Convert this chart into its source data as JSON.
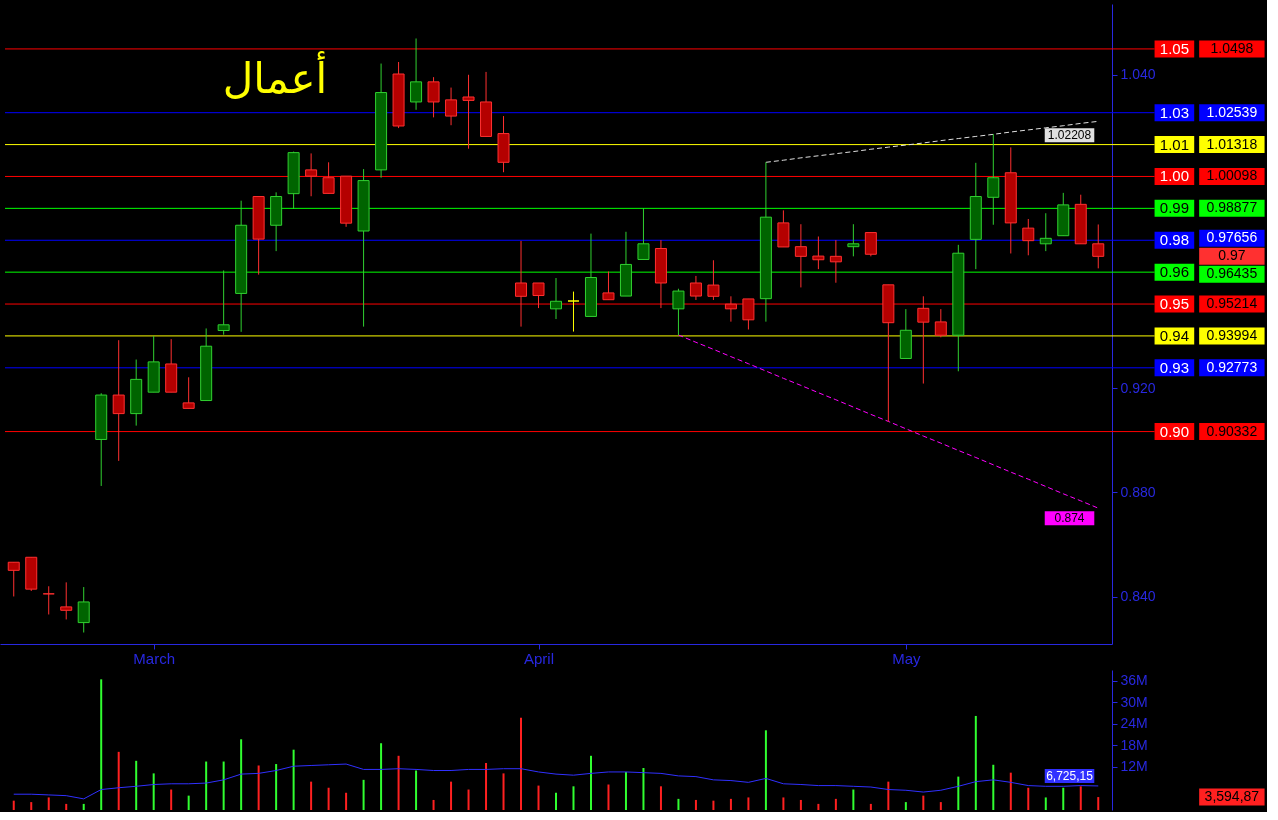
{
  "chart_data": [
    {
      "type": "candlestick",
      "title": "أعمال",
      "categories": [
        null,
        null,
        null,
        null,
        null,
        null,
        null,
        null,
        "March",
        null,
        null,
        null,
        null,
        null,
        null,
        null,
        null,
        null,
        null,
        null,
        null,
        null,
        null,
        null,
        null,
        null,
        null,
        null,
        null,
        null,
        "April",
        null,
        null,
        null,
        null,
        null,
        null,
        null,
        null,
        null,
        null,
        null,
        null,
        null,
        null,
        null,
        null,
        null,
        null,
        null,
        null,
        "May",
        null,
        null,
        null,
        null,
        null,
        null,
        null,
        null,
        null,
        null,
        null
      ],
      "ohlc": [
        [
          0.8533,
          0.8533,
          0.8402,
          0.8502
        ],
        [
          0.8552,
          0.8552,
          0.8423,
          0.843
        ],
        [
          0.8412,
          0.8441,
          0.8333,
          0.8412
        ],
        [
          0.8362,
          0.8456,
          0.8314,
          0.8349
        ],
        [
          0.8302,
          0.8438,
          0.8264,
          0.8381
        ],
        [
          0.9003,
          0.918,
          0.8825,
          0.9173
        ],
        [
          0.9173,
          0.9383,
          0.8921,
          0.9102
        ],
        [
          0.9102,
          0.9309,
          0.9056,
          0.9233
        ],
        [
          0.9184,
          0.9399,
          0.9184,
          0.93
        ],
        [
          0.9292,
          0.9387,
          0.9184,
          0.9184
        ],
        [
          0.9143,
          0.9241,
          0.9122,
          0.9122
        ],
        [
          0.9152,
          0.9428,
          0.9152,
          0.936
        ],
        [
          0.942,
          0.965,
          0.9404,
          0.9442
        ],
        [
          0.9562,
          0.9917,
          0.9415,
          0.9823
        ],
        [
          0.9933,
          0.9933,
          0.9634,
          0.977
        ],
        [
          0.9823,
          0.9949,
          0.9724,
          0.9933
        ],
        [
          0.9944,
          1.0105,
          0.9886,
          1.0101
        ],
        [
          1.0035,
          1.0098,
          0.9934,
          1.0011
        ],
        [
          1.0005,
          1.0064,
          0.9945,
          0.9945
        ],
        [
          1.0011,
          1.0011,
          0.9817,
          0.9831
        ],
        [
          0.9801,
          1.0038,
          0.9435,
          0.9994
        ],
        [
          1.0035,
          1.0442,
          1.0005,
          1.0331
        ],
        [
          1.0402,
          1.0448,
          1.0195,
          1.0203
        ],
        [
          1.0295,
          1.0538,
          1.0265,
          1.0372
        ],
        [
          1.0372,
          1.039,
          1.0236,
          1.0295
        ],
        [
          1.0303,
          1.035,
          1.0206,
          1.0241
        ],
        [
          1.0314,
          1.0399,
          1.0116,
          1.0301
        ],
        [
          1.0295,
          1.041,
          1.0163,
          1.0163
        ],
        [
          1.0174,
          1.0241,
          1.0026,
          1.0064
        ],
        [
          0.9602,
          0.9763,
          0.9435,
          0.9551
        ],
        [
          0.9602,
          0.9602,
          0.9506,
          0.9554
        ],
        [
          0.9503,
          0.9621,
          0.9464,
          0.9532
        ],
        [
          0.9533,
          0.9569,
          0.9416,
          0.9533
        ],
        [
          0.9474,
          0.9791,
          0.9474,
          0.9623
        ],
        [
          0.9564,
          0.9646,
          0.9538,
          0.9538
        ],
        [
          0.9552,
          0.9798,
          0.9552,
          0.9673
        ],
        [
          0.9692,
          0.9888,
          0.9692,
          0.9752
        ],
        [
          0.9734,
          0.9766,
          0.9506,
          0.9602
        ],
        [
          0.9503,
          0.958,
          0.9403,
          0.9571
        ],
        [
          0.9602,
          0.9629,
          0.9537,
          0.9552
        ],
        [
          0.9594,
          0.9689,
          0.9537,
          0.9551
        ],
        [
          0.9521,
          0.9551,
          0.9454,
          0.9503
        ],
        [
          0.9541,
          0.9541,
          0.9424,
          0.9461
        ],
        [
          0.9542,
          1.0064,
          0.9454,
          0.9854
        ],
        [
          0.9832,
          0.988,
          0.974,
          0.974
        ],
        [
          0.9741,
          0.9827,
          0.9585,
          0.9704
        ],
        [
          0.9705,
          0.978,
          0.9655,
          0.9691
        ],
        [
          0.9704,
          0.9766,
          0.9603,
          0.9683
        ],
        [
          0.9741,
          0.9827,
          0.9704,
          0.9752
        ],
        [
          0.9795,
          0.9795,
          0.9704,
          0.9712
        ],
        [
          0.9595,
          0.9595,
          0.9071,
          0.945
        ],
        [
          0.9313,
          0.9502,
          0.9313,
          0.9421
        ],
        [
          0.9505,
          0.9551,
          0.9217,
          0.9452
        ],
        [
          0.9453,
          0.9502,
          0.9394,
          0.9402
        ],
        [
          0.9402,
          0.9748,
          0.9264,
          0.9716
        ],
        [
          0.9769,
          1.0062,
          0.9655,
          0.9933
        ],
        [
          0.993,
          1.0172,
          0.9825,
          1.0005
        ],
        [
          1.0024,
          1.0121,
          0.9715,
          0.9832
        ],
        [
          0.9812,
          0.9847,
          0.9708,
          0.9764
        ],
        [
          0.9752,
          0.9869,
          0.9724,
          0.9773
        ],
        [
          0.9783,
          0.9947,
          0.9783,
          0.9901
        ],
        [
          0.9903,
          0.994,
          0.9752,
          0.9752
        ],
        [
          0.9752,
          0.9826,
          0.9658,
          0.9704
        ]
      ],
      "colors": [
        "#b40000",
        "#b40000",
        "#ff3030",
        "#b40000",
        "#006400",
        "#006400",
        "#b40000",
        "#006400",
        "#006400",
        "#b40000",
        "#b40000",
        "#006400",
        "#006400",
        "#006400",
        "#b40000",
        "#006400",
        "#006400",
        "#b40000",
        "#b40000",
        "#b40000",
        "#006400",
        "#006400",
        "#b40000",
        "#006400",
        "#b40000",
        "#b40000",
        "#b40000",
        "#b40000",
        "#b40000",
        "#b40000",
        "#b40000",
        "#006400",
        "#ffff00",
        "#006400",
        "#b40000",
        "#006400",
        "#006400",
        "#b40000",
        "#006400",
        "#b40000",
        "#b40000",
        "#b40000",
        "#b40000",
        "#006400",
        "#b40000",
        "#b40000",
        "#b40000",
        "#b40000",
        "#006400",
        "#b40000",
        "#b40000",
        "#006400",
        "#b40000",
        "#b40000",
        "#006400",
        "#006400",
        "#006400",
        "#b40000",
        "#b40000",
        "#006400",
        "#006400",
        "#b40000",
        "#b40000"
      ],
      "ylim": [
        0.822,
        1.067
      ],
      "yticks": [
        {
          "value": 1.04,
          "label": "1.040"
        },
        {
          "value": 0.92,
          "label": "0.920"
        },
        {
          "value": 0.88,
          "label": "0.880"
        },
        {
          "value": 0.84,
          "label": "0.840"
        }
      ],
      "ref_lines": [
        {
          "axis": "y",
          "value": 1.0498,
          "label": "1.05",
          "color": "#ff0000"
        },
        {
          "axis": "y",
          "value": 1.02539,
          "label": "1.03",
          "color": "#0000ff"
        },
        {
          "axis": "y",
          "value": 1.01318,
          "label": "1.01",
          "color": "#ffff00"
        },
        {
          "axis": "y",
          "value": 1.00098,
          "label": "1.00",
          "color": "#ff0000"
        },
        {
          "axis": "y",
          "value": 0.98877,
          "label": "0.99",
          "color": "#00ff00"
        },
        {
          "axis": "y",
          "value": 0.97656,
          "label": "0.98",
          "color": "#0000ff"
        },
        {
          "axis": "y",
          "value": 0.96435,
          "label": "0.96",
          "color": "#00ff00"
        },
        {
          "axis": "y",
          "value": 0.95214,
          "label": "0.95",
          "color": "#ff0000"
        },
        {
          "axis": "y",
          "value": 0.93994,
          "label": "0.94",
          "color": "#ffff00"
        },
        {
          "axis": "y",
          "value": 0.92773,
          "label": "0.93",
          "color": "#0000ff"
        },
        {
          "axis": "y",
          "value": 0.90332,
          "label": "0.90",
          "color": "#ff0000"
        }
      ],
      "series": [
        {
          "type": "line",
          "color": "#e0e0e0",
          "line_style": "dashed",
          "values": [
            null,
            null,
            null,
            null,
            null,
            null,
            null,
            null,
            null,
            null,
            null,
            null,
            null,
            null,
            null,
            null,
            null,
            null,
            null,
            null,
            null,
            null,
            null,
            null,
            null,
            null,
            null,
            null,
            null,
            null,
            null,
            null,
            null,
            null,
            null,
            null,
            null,
            null,
            null,
            null,
            null,
            null,
            null,
            1.0064,
            1.0072,
            1.0081,
            1.0089,
            1.0097,
            1.0105,
            1.0114,
            1.0122,
            1.013,
            1.0138,
            1.0147,
            1.0155,
            1.0163,
            1.0171,
            1.018,
            1.0188,
            1.0196,
            1.0204,
            1.0213,
            1.02208
          ],
          "value_labels": [
            null,
            null,
            null,
            null,
            null,
            null,
            null,
            null,
            null,
            null,
            null,
            null,
            null,
            null,
            null,
            null,
            null,
            null,
            null,
            null,
            null,
            null,
            null,
            null,
            null,
            null,
            null,
            null,
            null,
            null,
            null,
            null,
            null,
            null,
            null,
            null,
            null,
            null,
            null,
            null,
            null,
            null,
            null,
            null,
            null,
            null,
            null,
            null,
            null,
            null,
            null,
            null,
            null,
            null,
            null,
            null,
            null,
            null,
            null,
            null,
            null,
            null,
            "1.02208"
          ]
        },
        {
          "type": "line",
          "color": "#ff00ff",
          "line_style": "dashed",
          "values": [
            null,
            null,
            null,
            null,
            null,
            null,
            null,
            null,
            null,
            null,
            null,
            null,
            null,
            null,
            null,
            null,
            null,
            null,
            null,
            null,
            null,
            null,
            null,
            null,
            null,
            null,
            null,
            null,
            null,
            null,
            null,
            null,
            null,
            null,
            null,
            null,
            null,
            null,
            0.9403,
            0.9375,
            0.9348,
            0.932,
            0.9293,
            0.9265,
            0.9237,
            0.921,
            0.9182,
            0.9155,
            0.9127,
            0.9099,
            0.9072,
            0.9044,
            0.9016,
            0.8989,
            0.8961,
            0.8934,
            0.8906,
            0.8878,
            0.8851,
            0.8823,
            0.8795,
            0.8768,
            0.874
          ],
          "value_labels": [
            null,
            null,
            null,
            null,
            null,
            null,
            null,
            null,
            null,
            null,
            null,
            null,
            null,
            null,
            null,
            null,
            null,
            null,
            null,
            null,
            null,
            null,
            null,
            null,
            null,
            null,
            null,
            null,
            null,
            null,
            null,
            null,
            null,
            null,
            null,
            null,
            null,
            null,
            null,
            null,
            null,
            null,
            null,
            null,
            null,
            null,
            null,
            null,
            null,
            null,
            null,
            null,
            null,
            null,
            null,
            null,
            null,
            null,
            null,
            null,
            null,
            null,
            "0.874"
          ]
        }
      ],
      "annotations": [
        "1.0498",
        "1.02539",
        "1.01318",
        "1.00098",
        "0.98877",
        "0.97656",
        "0.96435",
        "0.95214",
        "0.93994",
        "0.92773",
        "0.90332",
        "0.97"
      ]
    },
    {
      "type": "bar",
      "categories": [
        null,
        null,
        null,
        null,
        null,
        null,
        null,
        null,
        null,
        null,
        null,
        null,
        null,
        null,
        null,
        null,
        null,
        null,
        null,
        null,
        null,
        null,
        null,
        null,
        null,
        null,
        null,
        null,
        null,
        null,
        null,
        null,
        null,
        null,
        null,
        null,
        null,
        null,
        null,
        null,
        null,
        null,
        null,
        null,
        null,
        null,
        null,
        null,
        null,
        null,
        null,
        null,
        null,
        null,
        null,
        null,
        null,
        null,
        null,
        null,
        null,
        null,
        null
      ],
      "ylim": [
        0,
        39
      ],
      "yticks": [
        {
          "value": 12,
          "label": "12M"
        },
        {
          "value": 18,
          "label": "18M"
        },
        {
          "value": 24,
          "label": "24M"
        },
        {
          "value": 30,
          "label": "30M"
        },
        {
          "value": 36,
          "label": "36M"
        }
      ],
      "tick_labels": "y",
      "series": [
        {
          "values": [
            2.6,
            2.2,
            3.5,
            1.7,
            1.7,
            36.4,
            16.2,
            13.7,
            10.2,
            5.7,
            4.0,
            13.5,
            13.5,
            19.7,
            12.4,
            12.8,
            16.8,
            7.9,
            6.2,
            4.8,
            8.4,
            18.6,
            15.1,
            11.0,
            2.8,
            7.9,
            5.7,
            13.1,
            10.2,
            25.7,
            6.8,
            4.8,
            6.6,
            15.1,
            7.1,
            10.6,
            11.7,
            6.6,
            3.1,
            2.8,
            2.6,
            3.1,
            3.5,
            22.2,
            3.5,
            2.8,
            1.7,
            3.1,
            5.7,
            1.7,
            7.9,
            2.2,
            4.0,
            2.2,
            9.3,
            26.2,
            12.6,
            10.4,
            6.2,
            3.5,
            6.2,
            6.6,
            3.6
          ],
          "colors": [
            "#ff2020",
            "#ff2020",
            "#ff2020",
            "#ff2020",
            "#30ff30",
            "#30ff30",
            "#ff2020",
            "#30ff30",
            "#30ff30",
            "#ff2020",
            "#30ff30",
            "#30ff30",
            "#30ff30",
            "#30ff30",
            "#ff2020",
            "#30ff30",
            "#30ff30",
            "#ff2020",
            "#ff2020",
            "#ff2020",
            "#30ff30",
            "#30ff30",
            "#ff2020",
            "#30ff30",
            "#ff2020",
            "#ff2020",
            "#ff2020",
            "#ff2020",
            "#ff2020",
            "#ff2020",
            "#ff2020",
            "#30ff30",
            "#30ff30",
            "#30ff30",
            "#ff2020",
            "#30ff30",
            "#30ff30",
            "#ff2020",
            "#30ff30",
            "#ff2020",
            "#ff2020",
            "#ff2020",
            "#ff2020",
            "#30ff30",
            "#ff2020",
            "#ff2020",
            "#ff2020",
            "#ff2020",
            "#30ff30",
            "#ff2020",
            "#ff2020",
            "#30ff30",
            "#ff2020",
            "#ff2020",
            "#30ff30",
            "#30ff30",
            "#30ff30",
            "#ff2020",
            "#ff2020",
            "#30ff30",
            "#30ff30",
            "#ff2020",
            "#ff2020"
          ]
        },
        {
          "type": "line",
          "color": "#3030ff",
          "values": [
            4.4,
            4.4,
            4.2,
            4.0,
            3.1,
            5.7,
            6.2,
            6.6,
            7.1,
            7.3,
            7.3,
            7.5,
            8.4,
            10.0,
            10.2,
            11.0,
            12.2,
            12.4,
            12.6,
            12.8,
            11.3,
            11.3,
            11.5,
            11.3,
            11.0,
            11.0,
            11.3,
            11.3,
            11.5,
            11.5,
            10.6,
            10.0,
            9.7,
            10.2,
            10.6,
            10.6,
            10.4,
            10.2,
            9.5,
            9.3,
            8.4,
            8.2,
            7.7,
            8.8,
            7.3,
            7.1,
            6.8,
            6.8,
            6.6,
            6.4,
            5.7,
            5.5,
            5.0,
            5.5,
            6.6,
            7.9,
            8.4,
            7.7,
            6.8,
            6.6,
            6.6,
            6.8,
            6.7
          ],
          "value_labels": [
            null,
            null,
            null,
            null,
            null,
            null,
            null,
            null,
            null,
            null,
            null,
            null,
            null,
            null,
            null,
            null,
            null,
            null,
            null,
            null,
            null,
            null,
            null,
            null,
            null,
            null,
            null,
            null,
            null,
            null,
            null,
            null,
            null,
            null,
            null,
            null,
            null,
            null,
            null,
            null,
            null,
            null,
            null,
            null,
            null,
            null,
            null,
            null,
            null,
            null,
            null,
            null,
            null,
            null,
            null,
            null,
            null,
            null,
            null,
            null,
            null,
            null,
            "6,725,15"
          ]
        }
      ],
      "annotations": [
        "3,594,87"
      ]
    }
  ]
}
